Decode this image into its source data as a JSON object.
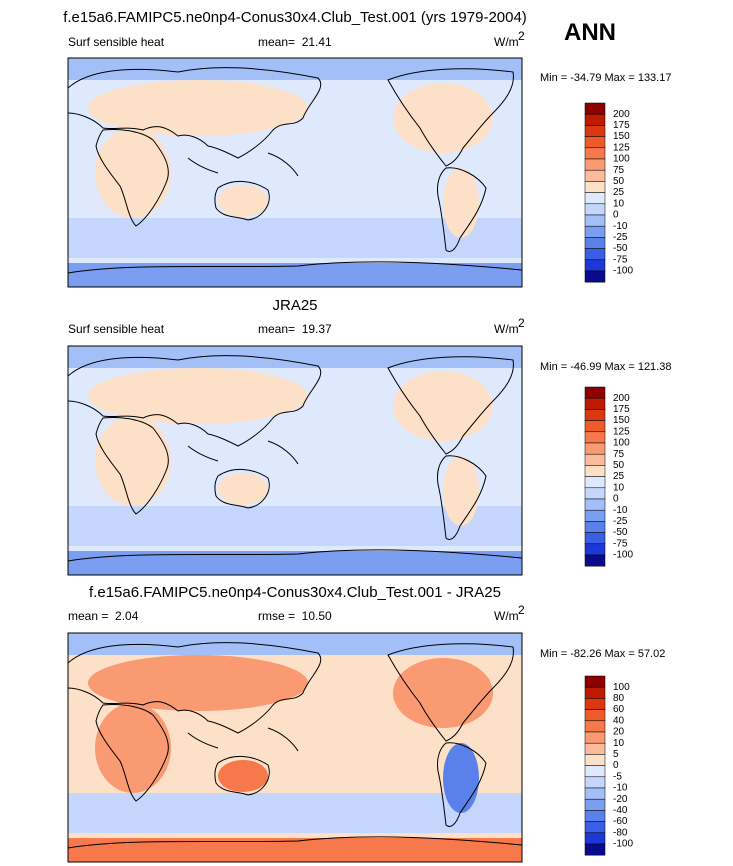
{
  "title": "f.e15a6.FAMIPC5.ne0np4-Conus30x4.Club_Test.001 (yrs 1979-2004)",
  "season": "ANN",
  "panels": [
    {
      "left_label": "Surf sensible heat",
      "center_label": "mean=  21.41",
      "units": "W/m",
      "units_exponent": "2",
      "min_max": "Min = -34.79 Max = 133.17",
      "colorbar": {
        "levels": [
          200,
          175,
          150,
          125,
          100,
          75,
          50,
          25,
          10,
          0,
          -10,
          -25,
          -50,
          -75,
          -100
        ],
        "colors": [
          "#8c0000",
          "#be1a00",
          "#dc3810",
          "#ee5a2a",
          "#f7784a",
          "#fa9a72",
          "#fcbc9c",
          "#fde0c8",
          "#dfe9fd",
          "#c4d6fb",
          "#a3bff7",
          "#7a9ff0",
          "#5a80ea",
          "#3a5ee6",
          "#1e37d8",
          "#0a0a8c"
        ]
      }
    },
    {
      "title": "JRA25",
      "left_label": "Surf sensible heat",
      "center_label": "mean=  19.37",
      "units": "W/m",
      "units_exponent": "2",
      "min_max": "Min = -46.99 Max = 121.38",
      "colorbar": {
        "levels": [
          200,
          175,
          150,
          125,
          100,
          75,
          50,
          25,
          10,
          0,
          -10,
          -25,
          -50,
          -75,
          -100
        ],
        "colors": [
          "#8c0000",
          "#be1a00",
          "#dc3810",
          "#ee5a2a",
          "#f7784a",
          "#fa9a72",
          "#fcbc9c",
          "#fde0c8",
          "#dfe9fd",
          "#c4d6fb",
          "#a3bff7",
          "#7a9ff0",
          "#5a80ea",
          "#3a5ee6",
          "#1e37d8",
          "#0a0a8c"
        ]
      }
    },
    {
      "title": "f.e15a6.FAMIPC5.ne0np4-Conus30x4.Club_Test.001 - JRA25",
      "left_label": "mean =  2.04",
      "center_label": "rmse =  10.50",
      "units": "W/m",
      "units_exponent": "2",
      "min_max": "Min = -82.26 Max = 57.02",
      "colorbar": {
        "levels": [
          100,
          80,
          60,
          40,
          20,
          10,
          5,
          0,
          -5,
          -10,
          -20,
          -40,
          -60,
          -80,
          -100
        ],
        "colors": [
          "#8c0000",
          "#be1a00",
          "#dc3810",
          "#ee5a2a",
          "#f7784a",
          "#fa9a72",
          "#fcbc9c",
          "#fde0c8",
          "#dfe9fd",
          "#c4d6fb",
          "#a3bff7",
          "#7a9ff0",
          "#5a80ea",
          "#3a5ee6",
          "#1e37d8",
          "#0a0a8c"
        ]
      }
    }
  ]
}
